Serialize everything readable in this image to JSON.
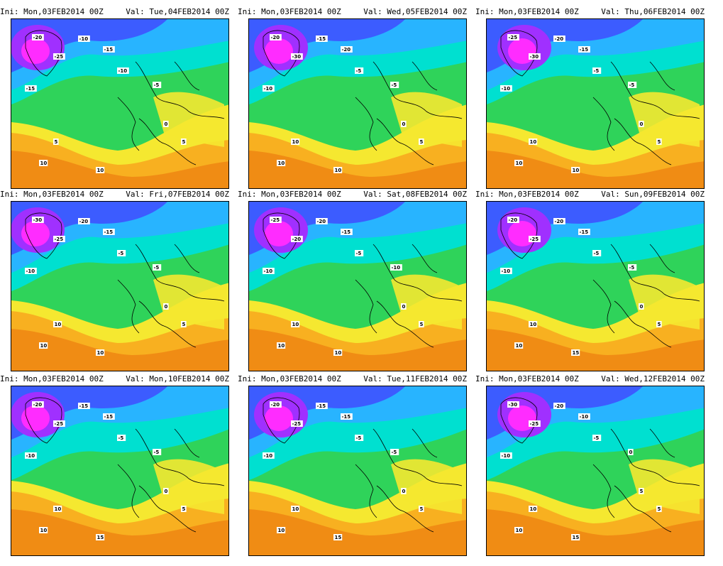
{
  "panels": [
    {
      "ini": "Ini: Mon,03FEB2014 00Z",
      "val": "Val: Tue,04FEB2014 00Z",
      "labels": [
        "-20",
        "-25",
        "-10",
        "-15",
        "-15",
        "-10",
        "-5",
        "0",
        "5",
        "5",
        "10",
        "10"
      ]
    },
    {
      "ini": "Ini: Mon,03FEB2014 00Z",
      "val": "Val: Wed,05FEB2014 00Z",
      "labels": [
        "-20",
        "-30",
        "-15",
        "-20",
        "-10",
        "-5",
        "-5",
        "0",
        "5",
        "10",
        "10",
        "10"
      ]
    },
    {
      "ini": "Ini: Mon,03FEB2014 00Z",
      "val": "Val: Thu,06FEB2014 00Z",
      "labels": [
        "-25",
        "-30",
        "-20",
        "-15",
        "-10",
        "-5",
        "-5",
        "0",
        "5",
        "10",
        "10",
        "10"
      ]
    },
    {
      "ini": "Ini: Mon,03FEB2014 00Z",
      "val": "Val: Fri,07FEB2014 00Z",
      "labels": [
        "-30",
        "-25",
        "-20",
        "-15",
        "-10",
        "-5",
        "-5",
        "0",
        "5",
        "10",
        "10",
        "10"
      ]
    },
    {
      "ini": "Ini: Mon,03FEB2014 00Z",
      "val": "Val: Sat,08FEB2014 00Z",
      "labels": [
        "-25",
        "-20",
        "-20",
        "-15",
        "-10",
        "-5",
        "-10",
        "0",
        "5",
        "10",
        "10",
        "10"
      ]
    },
    {
      "ini": "Ini: Mon,03FEB2014 00Z",
      "val": "Val: Sun,09FEB2014 00Z",
      "labels": [
        "-20",
        "-25",
        "-20",
        "-15",
        "-10",
        "-5",
        "-5",
        "0",
        "5",
        "10",
        "10",
        "15"
      ]
    },
    {
      "ini": "Ini: Mon,03FEB2014 00Z",
      "val": "Val: Mon,10FEB2014 00Z",
      "labels": [
        "-20",
        "-25",
        "-15",
        "-15",
        "-10",
        "-5",
        "-5",
        "0",
        "5",
        "10",
        "10",
        "15"
      ]
    },
    {
      "ini": "Ini: Mon,03FEB2014 00Z",
      "val": "Val: Tue,11FEB2014 00Z",
      "labels": [
        "-20",
        "-25",
        "-15",
        "-15",
        "-10",
        "-5",
        "-5",
        "0",
        "5",
        "10",
        "10",
        "15"
      ]
    },
    {
      "ini": "Ini: Mon,03FEB2014 00Z",
      "val": "Val: Wed,12FEB2014 00Z",
      "labels": [
        "-30",
        "-25",
        "-20",
        "-10",
        "-10",
        "-5",
        "0",
        "5",
        "5",
        "10",
        "10",
        "15"
      ]
    }
  ],
  "colors": {
    "deep_cold": "#ff2cff",
    "cold_purple": "#a030ff",
    "cold_blue": "#3c5cff",
    "cool_blue": "#28b4ff",
    "cyan": "#00e0d0",
    "green": "#2fd35a",
    "yellow": "#f5e830",
    "orange_light": "#f8b020",
    "orange": "#f08c14"
  }
}
